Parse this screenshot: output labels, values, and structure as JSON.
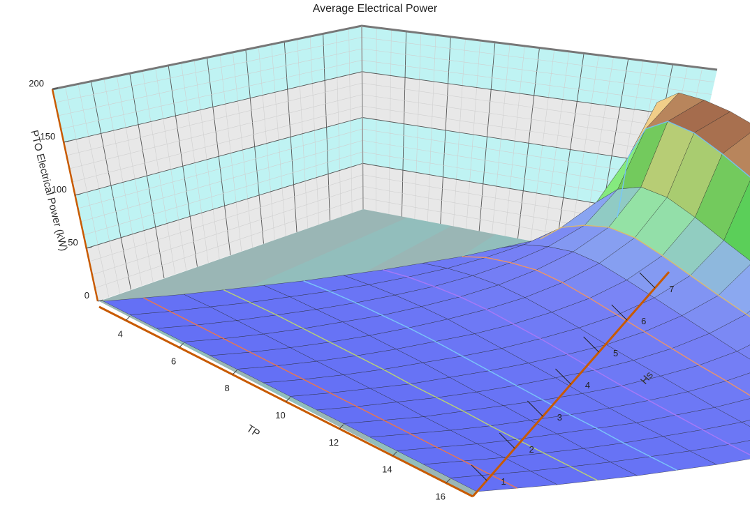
{
  "chart_data": {
    "type": "surface",
    "title": "Average Electrical Power",
    "xlabel": "TP",
    "ylabel": "Hs",
    "zlabel": "PTO Electrical Power (kW)",
    "x_ticks": [
      4,
      6,
      8,
      10,
      12,
      14,
      16
    ],
    "y_ticks": [
      1,
      2,
      3,
      4,
      5,
      6,
      7
    ],
    "z_ticks": [
      0,
      50,
      100,
      150,
      200
    ],
    "xlim": [
      3,
      17
    ],
    "ylim": [
      0.5,
      7.5
    ],
    "zlim": [
      0,
      200
    ],
    "x": [
      3,
      4,
      5,
      6,
      7,
      8,
      9,
      10,
      11,
      12,
      13,
      14,
      15,
      16,
      17
    ],
    "y": [
      0.5,
      1,
      1.5,
      2,
      2.5,
      3,
      3.5,
      4,
      4.5,
      5,
      5.5,
      6,
      6.5,
      7,
      7.5
    ],
    "z": [
      [
        0,
        0,
        0,
        0,
        0,
        0,
        0,
        0,
        0,
        0,
        0,
        0,
        0,
        0,
        0
      ],
      [
        1,
        1,
        1,
        1,
        1,
        1,
        1,
        1,
        1,
        1,
        1,
        1,
        1,
        1,
        1
      ],
      [
        2,
        3,
        3,
        3,
        3,
        3,
        3,
        3,
        3,
        2,
        2,
        2,
        2,
        2,
        2
      ],
      [
        4,
        5,
        6,
        6,
        6,
        6,
        6,
        5,
        5,
        5,
        4,
        4,
        4,
        4,
        4
      ],
      [
        6,
        8,
        9,
        10,
        10,
        10,
        10,
        9,
        8,
        8,
        7,
        7,
        6,
        6,
        6
      ],
      [
        8,
        11,
        13,
        14,
        15,
        15,
        14,
        13,
        12,
        11,
        10,
        10,
        9,
        9,
        9
      ],
      [
        11,
        15,
        18,
        20,
        21,
        20,
        19,
        18,
        17,
        15,
        14,
        13,
        13,
        12,
        12
      ],
      [
        14,
        20,
        24,
        27,
        28,
        27,
        26,
        24,
        22,
        20,
        19,
        18,
        17,
        16,
        16
      ],
      [
        18,
        26,
        32,
        36,
        37,
        36,
        34,
        31,
        29,
        27,
        25,
        23,
        22,
        21,
        20
      ],
      [
        22,
        34,
        42,
        48,
        49,
        47,
        44,
        41,
        38,
        35,
        33,
        30,
        29,
        27,
        26
      ],
      [
        28,
        44,
        55,
        63,
        65,
        62,
        58,
        54,
        50,
        46,
        43,
        40,
        38,
        36,
        34
      ],
      [
        34,
        58,
        73,
        84,
        87,
        83,
        77,
        71,
        66,
        61,
        57,
        53,
        50,
        47,
        45
      ],
      [
        42,
        80,
        105,
        120,
        123,
        117,
        108,
        100,
        93,
        86,
        80,
        75,
        70,
        66,
        63
      ],
      [
        50,
        120,
        160,
        180,
        182,
        175,
        165,
        155,
        145,
        135,
        125,
        118,
        112,
        106,
        100
      ],
      [
        56,
        170,
        192,
        198,
        200,
        198,
        192,
        182,
        170,
        158,
        148,
        140,
        133,
        126,
        120
      ]
    ],
    "colors": {
      "low": "#6470f5",
      "mid_low": "#8fa2f0",
      "mid": "#8cf58c",
      "mid_high": "#f2d08a",
      "high": "#8b4a38",
      "wall": "#b8f2f2",
      "wall_alt": "#e6e6e6",
      "floor": "#7fb3b0",
      "axis_accent": "#c85a00"
    }
  }
}
